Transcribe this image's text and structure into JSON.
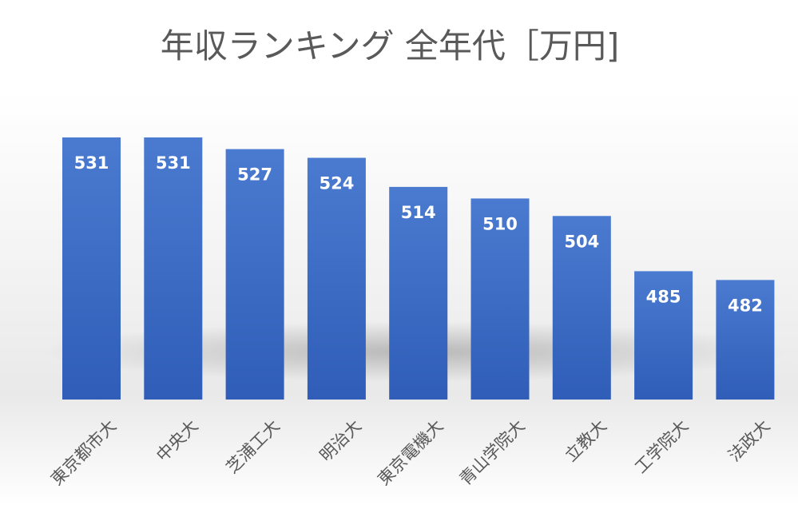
{
  "chart_data": {
    "type": "bar",
    "title": "年収ランキング 全年代［万円]",
    "categories": [
      "東京都市大",
      "中央大",
      "芝浦工大",
      "明治大",
      "東京電機大",
      "青山学院大",
      "立教大",
      "工学院大",
      "法政大"
    ],
    "values": [
      531,
      531,
      527,
      524,
      514,
      510,
      504,
      485,
      482
    ],
    "data_labels": [
      "531",
      "531",
      "527",
      "524",
      "514",
      "510",
      "504",
      "485",
      "482"
    ],
    "xlabel": "",
    "ylabel": "",
    "ylim": [
      0,
      531
    ],
    "grid": false,
    "legend": "none",
    "colors": {
      "bar_top": "#4a7bd0",
      "bar_bottom": "#2f5db8",
      "label": "#595959",
      "value_label": "#ffffff"
    }
  }
}
